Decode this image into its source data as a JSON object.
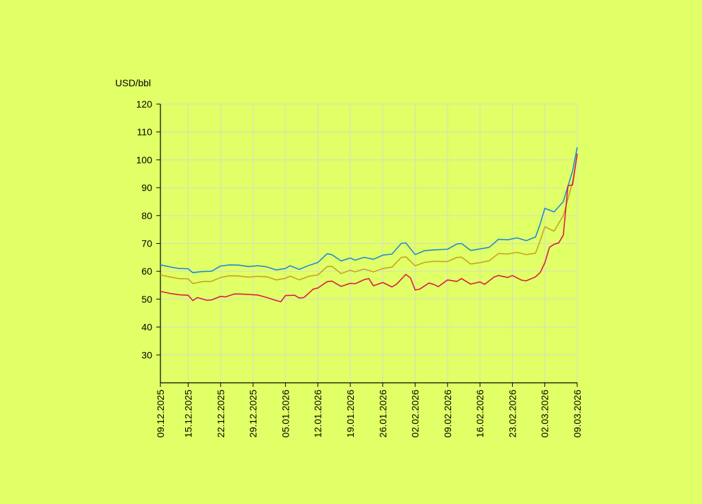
{
  "chart_data": {
    "type": "line",
    "title": "",
    "xlabel": "",
    "ylabel": "USD/bbl",
    "ylim": [
      20,
      120
    ],
    "y_ticks": [
      30,
      40,
      50,
      60,
      70,
      80,
      90,
      100,
      110,
      120
    ],
    "x_tick_labels": [
      "09.12.2025",
      "15.12.2025",
      "22.12.2025",
      "29.12.2025",
      "05.01.2026",
      "12.01.2026",
      "19.01.2026",
      "26.01.2026",
      "02.02.2026",
      "09.02.2026",
      "16.02.2026",
      "23.02.2026",
      "02.03.2026",
      "09.03.2026"
    ],
    "x_start": "09.12.2025",
    "x_end": "09.03.2026",
    "grid": true,
    "legend": "none",
    "series": [
      {
        "color": "#1a8ad4",
        "points": [
          [
            "09.12.2025",
            62.3
          ],
          [
            "11.12.2025",
            61.6
          ],
          [
            "13.12.2025",
            61.0
          ],
          [
            "15.12.2025",
            60.9
          ],
          [
            "16.12.2025",
            59.5
          ],
          [
            "18.12.2025",
            59.9
          ],
          [
            "20.12.2025",
            60.0
          ],
          [
            "22.12.2025",
            61.9
          ],
          [
            "24.12.2025",
            62.3
          ],
          [
            "26.12.2025",
            62.2
          ],
          [
            "28.12.2025",
            61.7
          ],
          [
            "30.12.2025",
            62.0
          ],
          [
            "01.01.2026",
            61.6
          ],
          [
            "03.01.2026",
            60.5
          ],
          [
            "05.01.2026",
            61.0
          ],
          [
            "06.01.2026",
            62.0
          ],
          [
            "08.01.2026",
            60.7
          ],
          [
            "10.01.2026",
            62.1
          ],
          [
            "12.01.2026",
            63.2
          ],
          [
            "14.01.2026",
            66.3
          ],
          [
            "15.01.2026",
            66.0
          ],
          [
            "17.01.2026",
            63.7
          ],
          [
            "19.01.2026",
            64.8
          ],
          [
            "20.01.2026",
            64.0
          ],
          [
            "22.01.2026",
            65.0
          ],
          [
            "24.01.2026",
            64.3
          ],
          [
            "26.01.2026",
            65.8
          ],
          [
            "28.01.2026",
            66.2
          ],
          [
            "30.01.2026",
            70.0
          ],
          [
            "31.01.2026",
            70.2
          ],
          [
            "02.02.2026",
            66.0
          ],
          [
            "04.02.2026",
            67.4
          ],
          [
            "06.02.2026",
            67.7
          ],
          [
            "09.02.2026",
            67.9
          ],
          [
            "11.02.2026",
            69.8
          ],
          [
            "12.02.2026",
            70.0
          ],
          [
            "14.02.2026",
            67.5
          ],
          [
            "16.02.2026",
            68.0
          ],
          [
            "18.02.2026",
            68.6
          ],
          [
            "20.02.2026",
            71.5
          ],
          [
            "22.02.2026",
            71.3
          ],
          [
            "24.02.2026",
            72.0
          ],
          [
            "26.02.2026",
            71.0
          ],
          [
            "28.02.2026",
            72.3
          ],
          [
            "01.03.2026",
            77.0
          ],
          [
            "02.03.2026",
            82.6
          ],
          [
            "04.03.2026",
            81.3
          ],
          [
            "06.03.2026",
            85.0
          ],
          [
            "08.03.2026",
            96.0
          ],
          [
            "09.03.2026",
            104.5
          ]
        ]
      },
      {
        "color": "#c9a21f",
        "points": [
          [
            "09.12.2025",
            58.7
          ],
          [
            "11.12.2025",
            58.0
          ],
          [
            "13.12.2025",
            57.4
          ],
          [
            "15.12.2025",
            57.3
          ],
          [
            "16.12.2025",
            55.6
          ],
          [
            "18.12.2025",
            56.3
          ],
          [
            "20.12.2025",
            56.4
          ],
          [
            "22.12.2025",
            57.8
          ],
          [
            "24.12.2025",
            58.4
          ],
          [
            "26.12.2025",
            58.3
          ],
          [
            "28.12.2025",
            57.9
          ],
          [
            "30.12.2025",
            58.2
          ],
          [
            "01.01.2026",
            58.0
          ],
          [
            "03.01.2026",
            56.9
          ],
          [
            "05.01.2026",
            57.5
          ],
          [
            "06.01.2026",
            58.3
          ],
          [
            "08.01.2026",
            56.9
          ],
          [
            "10.01.2026",
            58.2
          ],
          [
            "12.01.2026",
            58.7
          ],
          [
            "14.01.2026",
            61.7
          ],
          [
            "15.01.2026",
            61.8
          ],
          [
            "17.01.2026",
            59.2
          ],
          [
            "19.01.2026",
            60.4
          ],
          [
            "20.01.2026",
            59.8
          ],
          [
            "22.01.2026",
            60.8
          ],
          [
            "24.01.2026",
            59.8
          ],
          [
            "26.01.2026",
            61.0
          ],
          [
            "28.01.2026",
            61.5
          ],
          [
            "30.01.2026",
            65.0
          ],
          [
            "31.01.2026",
            65.2
          ],
          [
            "02.02.2026",
            62.0
          ],
          [
            "04.02.2026",
            63.2
          ],
          [
            "06.02.2026",
            63.6
          ],
          [
            "09.02.2026",
            63.5
          ],
          [
            "11.02.2026",
            65.0
          ],
          [
            "12.02.2026",
            65.1
          ],
          [
            "14.02.2026",
            62.6
          ],
          [
            "16.02.2026",
            63.1
          ],
          [
            "18.02.2026",
            63.8
          ],
          [
            "20.02.2026",
            66.4
          ],
          [
            "22.02.2026",
            66.2
          ],
          [
            "24.02.2026",
            66.8
          ],
          [
            "26.02.2026",
            66.0
          ],
          [
            "28.02.2026",
            66.5
          ],
          [
            "01.03.2026",
            71.0
          ],
          [
            "02.03.2026",
            76.0
          ],
          [
            "04.03.2026",
            74.4
          ],
          [
            "06.03.2026",
            80.0
          ],
          [
            "08.03.2026",
            92.0
          ],
          [
            "09.03.2026",
            102.0
          ]
        ]
      },
      {
        "color": "#d81b45",
        "points": [
          [
            "09.12.2025",
            52.8
          ],
          [
            "11.12.2025",
            52.1
          ],
          [
            "13.12.2025",
            51.6
          ],
          [
            "15.12.2025",
            51.4
          ],
          [
            "16.12.2025",
            49.5
          ],
          [
            "17.12.2025",
            50.6
          ],
          [
            "19.12.2025",
            49.6
          ],
          [
            "20.12.2025",
            49.7
          ],
          [
            "22.12.2025",
            51.0
          ],
          [
            "23.12.2025",
            50.8
          ],
          [
            "25.12.2025",
            51.9
          ],
          [
            "27.12.2025",
            51.8
          ],
          [
            "29.12.2025",
            51.6
          ],
          [
            "30.12.2025",
            51.5
          ],
          [
            "01.01.2026",
            50.6
          ],
          [
            "03.01.2026",
            49.5
          ],
          [
            "04.01.2026",
            49.1
          ],
          [
            "05.01.2026",
            51.3
          ],
          [
            "07.01.2026",
            51.4
          ],
          [
            "08.01.2026",
            50.4
          ],
          [
            "09.01.2026",
            50.6
          ],
          [
            "11.01.2026",
            53.6
          ],
          [
            "12.01.2026",
            54.0
          ],
          [
            "14.01.2026",
            56.3
          ],
          [
            "15.01.2026",
            56.5
          ],
          [
            "17.01.2026",
            54.6
          ],
          [
            "19.01.2026",
            55.7
          ],
          [
            "20.01.2026",
            55.5
          ],
          [
            "22.01.2026",
            57.0
          ],
          [
            "23.01.2026",
            57.4
          ],
          [
            "24.01.2026",
            54.8
          ],
          [
            "26.01.2026",
            56.0
          ],
          [
            "28.01.2026",
            54.4
          ],
          [
            "29.01.2026",
            55.4
          ],
          [
            "31.01.2026",
            58.9
          ],
          [
            "01.02.2026",
            57.6
          ],
          [
            "02.02.2026",
            53.3
          ],
          [
            "03.02.2026",
            53.6
          ],
          [
            "05.02.2026",
            55.8
          ],
          [
            "06.02.2026",
            55.3
          ],
          [
            "07.02.2026",
            54.5
          ],
          [
            "09.02.2026",
            56.9
          ],
          [
            "11.02.2026",
            56.4
          ],
          [
            "12.02.2026",
            57.4
          ],
          [
            "14.02.2026",
            55.4
          ],
          [
            "16.02.2026",
            56.2
          ],
          [
            "17.02.2026",
            55.3
          ],
          [
            "19.02.2026",
            57.9
          ],
          [
            "20.02.2026",
            58.5
          ],
          [
            "22.02.2026",
            57.8
          ],
          [
            "23.02.2026",
            58.5
          ],
          [
            "25.02.2026",
            56.8
          ],
          [
            "26.02.2026",
            56.6
          ],
          [
            "28.02.2026",
            58.0
          ],
          [
            "01.03.2026",
            59.6
          ],
          [
            "02.03.2026",
            63.0
          ],
          [
            "03.03.2026",
            68.6
          ],
          [
            "04.03.2026",
            69.7
          ],
          [
            "05.03.2026",
            70.2
          ],
          [
            "06.03.2026",
            73.0
          ],
          [
            "07.03.2026",
            90.7
          ],
          [
            "08.03.2026",
            91.0
          ],
          [
            "09.03.2026",
            102.2
          ]
        ]
      }
    ]
  }
}
